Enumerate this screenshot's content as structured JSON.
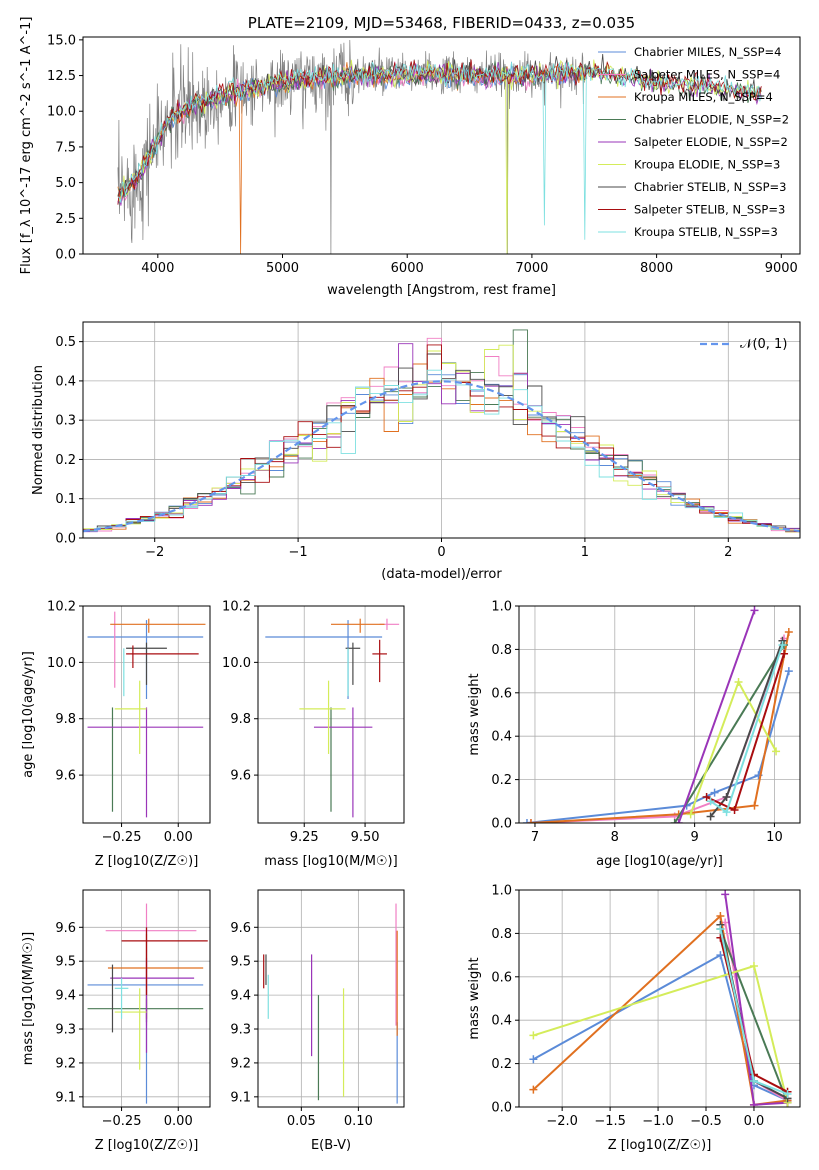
{
  "colors": {
    "chabrier_miles": "#5b8bd8",
    "salpeter_miles": "#f07fc4",
    "kroupa_miles": "#e07020",
    "chabrier_elodie": "#4a7a55",
    "salpeter_elodie": "#9a35b8",
    "kroupa_elodie": "#d4ec5a",
    "chabrier_stelib": "#4a4a4a",
    "salpeter_stelib": "#a80d10",
    "kroupa_stelib": "#7ee0e0",
    "gauss": "#6495ed",
    "spectrum": "#808080"
  },
  "chart_data": [
    {
      "id": "spectrum",
      "type": "line",
      "title": "PLATE=2109, MJD=53468, FIBERID=0433, z=0.035",
      "xlabel": "wavelength [Angstrom, rest frame]",
      "ylabel": "Flux [f_λ 10^-17 erg cm^-2 s^-1 A^-1]",
      "xlim": [
        3400,
        9150
      ],
      "ylim": [
        0,
        15.2
      ],
      "xticks": [
        "4000",
        "5000",
        "6000",
        "7000",
        "8000",
        "9000"
      ],
      "yticks": [
        "0.0",
        "2.5",
        "5.0",
        "7.5",
        "10.0",
        "12.5",
        "15.0"
      ],
      "grid": false,
      "legend_position": "upper-right",
      "legend": [
        "Chabrier MILES, N_SSP=4",
        "Salpeter MILES, N_SSP=4",
        "Kroupa MILES, N_SSP=4",
        "Chabrier ELODIE, N_SSP=2",
        "Salpeter ELODIE, N_SSP=2",
        "Kroupa ELODIE, N_SSP=3",
        "Chabrier STELIB, N_SSP=3",
        "Salpeter STELIB, N_SSP=3",
        "Kroupa STELIB, N_SSP=3"
      ],
      "continuum": {
        "x": [
          3700,
          3850,
          4000,
          4100,
          4300,
          4600,
          5000,
          5500,
          6000,
          6500,
          7000,
          7500,
          8000,
          8500,
          8800
        ],
        "y": [
          4.0,
          5.5,
          8.0,
          9.5,
          10.5,
          11.3,
          12.0,
          12.5,
          12.6,
          12.5,
          12.5,
          12.8,
          12.0,
          11.6,
          11.2
        ]
      }
    },
    {
      "id": "residuals",
      "type": "step",
      "xlabel": "(data-model)/error",
      "ylabel": "Normed distribution",
      "xlim": [
        -2.5,
        2.5
      ],
      "ylim": [
        0,
        0.55
      ],
      "xticks": [
        "−2",
        "−1",
        "0",
        "1",
        "2"
      ],
      "yticks": [
        "0.0",
        "0.1",
        "0.2",
        "0.3",
        "0.4",
        "0.5"
      ],
      "grid": true,
      "legend": [
        "𝒩(0, 1)"
      ],
      "legend_position": "upper-right",
      "bin_width": 0.1,
      "reference_curve": "gaussian mean 0 sigma 1"
    },
    {
      "id": "age-vs-Z",
      "type": "errorbar",
      "xlabel": "Z [log10(Z/Z☉)]",
      "ylabel": "age  [log10(age/yr)]",
      "xlim": [
        -0.42,
        0.14
      ],
      "ylim": [
        9.43,
        10.2
      ],
      "xticks": [
        "−0.25",
        "0.00"
      ],
      "yticks": [
        "9.6",
        "9.8",
        "10.0",
        "10.2"
      ],
      "grid": true,
      "points": [
        {
          "c": "chabrier_miles",
          "x": -0.14,
          "xe": [
            0.26,
            0.25
          ],
          "y": 10.09,
          "ye": [
            0.22,
            0.06
          ]
        },
        {
          "c": "salpeter_miles",
          "x": -0.28,
          "xe": [
            0.0,
            0.0
          ],
          "y": 10.13,
          "ye": [
            0.22,
            0.05
          ]
        },
        {
          "c": "kroupa_miles",
          "x": -0.13,
          "xe": [
            0.17,
            0.25
          ],
          "y": 10.135,
          "ye": [
            0.03,
            0.02
          ]
        },
        {
          "c": "chabrier_elodie",
          "x": -0.29,
          "xe": [
            0.0,
            0.0
          ],
          "y": 9.77,
          "ye": [
            0.3,
            0.07
          ]
        },
        {
          "c": "salpeter_elodie",
          "x": -0.14,
          "xe": [
            0.26,
            0.25
          ],
          "y": 9.77,
          "ye": [
            0.32,
            0.07
          ]
        },
        {
          "c": "kroupa_elodie",
          "x": -0.17,
          "xe": [
            0.11,
            0.03
          ],
          "y": 9.835,
          "ye": [
            0.16,
            0.1
          ]
        },
        {
          "c": "chabrier_stelib",
          "x": -0.14,
          "xe": [
            0.09,
            0.09
          ],
          "y": 10.05,
          "ye": [
            0.13,
            0.02
          ]
        },
        {
          "c": "salpeter_stelib",
          "x": -0.2,
          "xe": [
            0.03,
            0.29
          ],
          "y": 10.03,
          "ye": [
            0.05,
            0.03
          ]
        },
        {
          "c": "kroupa_stelib",
          "x": -0.24,
          "xe": [
            0.0,
            0.0
          ],
          "y": 10.02,
          "ye": [
            0.14,
            0.03
          ]
        }
      ]
    },
    {
      "id": "age-vs-mass",
      "type": "errorbar",
      "xlabel": "mass [log10(M/M☉)]",
      "ylabel": "",
      "xlim": [
        9.06,
        9.66
      ],
      "ylim": [
        9.43,
        10.2
      ],
      "xticks": [
        "9.25",
        "9.50"
      ],
      "yticks": [
        "9.6",
        "9.8",
        "10.0",
        "10.2"
      ],
      "grid": true,
      "points": [
        {
          "c": "chabrier_miles",
          "x": 9.43,
          "xe": [
            0.34,
            0.14
          ],
          "y": 10.09,
          "ye": [
            0.22,
            0.06
          ]
        },
        {
          "c": "salpeter_miles",
          "x": 9.59,
          "xe": [
            0.03,
            0.05
          ],
          "y": 10.135,
          "ye": [
            0.02,
            0.02
          ]
        },
        {
          "c": "kroupa_miles",
          "x": 9.48,
          "xe": [
            0.12,
            0.1
          ],
          "y": 10.135,
          "ye": [
            0.03,
            0.02
          ]
        },
        {
          "c": "chabrier_elodie",
          "x": 9.36,
          "xe": [
            0.0,
            0.0
          ],
          "y": 9.77,
          "ye": [
            0.3,
            0.07
          ]
        },
        {
          "c": "salpeter_elodie",
          "x": 9.45,
          "xe": [
            0.16,
            0.08
          ],
          "y": 9.77,
          "ye": [
            0.32,
            0.07
          ]
        },
        {
          "c": "kroupa_elodie",
          "x": 9.35,
          "xe": [
            0.12,
            0.07
          ],
          "y": 9.835,
          "ye": [
            0.16,
            0.1
          ]
        },
        {
          "c": "chabrier_stelib",
          "x": 9.45,
          "xe": [
            0.03,
            0.03
          ],
          "y": 10.05,
          "ye": [
            0.13,
            0.02
          ]
        },
        {
          "c": "salpeter_stelib",
          "x": 9.56,
          "xe": [
            0.03,
            0.03
          ],
          "y": 10.03,
          "ye": [
            0.1,
            0.05
          ]
        },
        {
          "c": "kroupa_stelib",
          "x": 9.43,
          "xe": [
            0.0,
            0.0
          ],
          "y": 10.02,
          "ye": [
            0.14,
            0.03
          ]
        }
      ]
    },
    {
      "id": "mass-weight-vs-age",
      "type": "line",
      "xlabel": "age  [log10(age/yr)]",
      "ylabel": "mass weight",
      "xlim": [
        6.8,
        10.32
      ],
      "ylim": [
        0,
        1.0
      ],
      "xticks": [
        "7",
        "8",
        "9",
        "10"
      ],
      "yticks": [
        "0.0",
        "0.2",
        "0.4",
        "0.6",
        "0.8",
        "1.0"
      ],
      "grid": true,
      "series": [
        {
          "c": "chabrier_miles",
          "x": [
            6.9,
            8.9,
            9.25,
            9.8,
            10.18
          ],
          "y": [
            0.0,
            0.08,
            0.14,
            0.22,
            0.7
          ]
        },
        {
          "c": "salpeter_miles",
          "x": [
            6.95,
            8.75,
            9.4,
            10.12
          ],
          "y": [
            0.0,
            0.03,
            0.12,
            0.85
          ]
        },
        {
          "c": "kroupa_miles",
          "x": [
            6.95,
            8.8,
            9.75,
            10.18
          ],
          "y": [
            0.0,
            0.04,
            0.08,
            0.88
          ]
        },
        {
          "c": "chabrier_elodie",
          "x": [
            8.75,
            10.12
          ],
          "y": [
            0.0,
            0.82
          ]
        },
        {
          "c": "salpeter_elodie",
          "x": [
            8.8,
            9.75
          ],
          "y": [
            0.0,
            0.98
          ]
        },
        {
          "c": "kroupa_elodie",
          "x": [
            8.95,
            9.55,
            10.02
          ],
          "y": [
            0.04,
            0.65,
            0.33
          ]
        },
        {
          "c": "chabrier_stelib",
          "x": [
            9.2,
            9.4,
            10.1
          ],
          "y": [
            0.03,
            0.12,
            0.84
          ]
        },
        {
          "c": "salpeter_stelib",
          "x": [
            9.15,
            9.5,
            10.12
          ],
          "y": [
            0.12,
            0.06,
            0.78
          ]
        },
        {
          "c": "kroupa_stelib",
          "x": [
            9.2,
            9.4,
            10.1
          ],
          "y": [
            0.1,
            0.05,
            0.82
          ]
        }
      ]
    },
    {
      "id": "mass-vs-Z",
      "type": "errorbar",
      "xlabel": "Z [log10(Z/Z☉)]",
      "ylabel": "mass [log10(M/M☉)]",
      "xlim": [
        -0.42,
        0.14
      ],
      "ylim": [
        9.07,
        9.71
      ],
      "xticks": [
        "−0.25",
        "0.00"
      ],
      "yticks": [
        "9.1",
        "9.2",
        "9.3",
        "9.4",
        "9.5",
        "9.6"
      ],
      "grid": true,
      "points": [
        {
          "c": "chabrier_miles",
          "x": -0.14,
          "xe": [
            0.26,
            0.25
          ],
          "y": 9.43,
          "ye": [
            0.35,
            0.17
          ]
        },
        {
          "c": "salpeter_miles",
          "x": -0.14,
          "xe": [
            0.18,
            0.22
          ],
          "y": 9.59,
          "ye": [
            0.28,
            0.08
          ]
        },
        {
          "c": "kroupa_miles",
          "x": -0.14,
          "xe": [
            0.17,
            0.25
          ],
          "y": 9.48,
          "ye": [
            0.15,
            0.1
          ]
        },
        {
          "c": "chabrier_elodie",
          "x": -0.14,
          "xe": [
            0.26,
            0.25
          ],
          "y": 9.36,
          "ye": [
            0.04,
            0.03
          ]
        },
        {
          "c": "salpeter_elodie",
          "x": -0.14,
          "xe": [
            0.16,
            0.21
          ],
          "y": 9.45,
          "ye": [
            0.22,
            0.06
          ]
        },
        {
          "c": "kroupa_elodie",
          "x": -0.17,
          "xe": [
            0.11,
            0.03
          ],
          "y": 9.35,
          "ye": [
            0.17,
            0.07
          ]
        },
        {
          "c": "chabrier_stelib",
          "x": -0.29,
          "xe": [
            0.0,
            0.0
          ],
          "y": 9.46,
          "ye": [
            0.17,
            0.03
          ]
        },
        {
          "c": "salpeter_stelib",
          "x": -0.14,
          "xe": [
            0.11,
            0.27
          ],
          "y": 9.56,
          "ye": [
            0.16,
            0.04
          ]
        },
        {
          "c": "kroupa_stelib",
          "x": -0.25,
          "xe": [
            0.03,
            0.03
          ],
          "y": 9.42,
          "ye": [
            0.09,
            0.03
          ]
        }
      ]
    },
    {
      "id": "mass-vs-ebv",
      "type": "errorbar",
      "xlabel": "E(B-V)",
      "ylabel": "",
      "xlim": [
        0.012,
        0.14
      ],
      "ylim": [
        9.07,
        9.71
      ],
      "xticks": [
        "0.05",
        "0.10"
      ],
      "yticks": [
        "9.1",
        "9.2",
        "9.3",
        "9.4",
        "9.5",
        "9.6"
      ],
      "grid": true,
      "points": [
        {
          "c": "chabrier_miles",
          "x": 0.134,
          "xe": [
            0.0,
            0.0
          ],
          "y": 9.29,
          "ye": [
            0.21,
            0.03
          ]
        },
        {
          "c": "salpeter_miles",
          "x": 0.133,
          "xe": [
            0.0,
            0.0
          ],
          "y": 9.59,
          "ye": [
            0.28,
            0.08
          ]
        },
        {
          "c": "kroupa_miles",
          "x": 0.134,
          "xe": [
            0.0,
            0.0
          ],
          "y": 9.43,
          "ye": [
            0.15,
            0.16
          ]
        },
        {
          "c": "chabrier_elodie",
          "x": 0.065,
          "xe": [
            0.0,
            0.0
          ],
          "y": 9.27,
          "ye": [
            0.18,
            0.13
          ]
        },
        {
          "c": "salpeter_elodie",
          "x": 0.059,
          "xe": [
            0.0,
            0.0
          ],
          "y": 9.37,
          "ye": [
            0.15,
            0.15
          ]
        },
        {
          "c": "kroupa_elodie",
          "x": 0.087,
          "xe": [
            0.0,
            0.0
          ],
          "y": 9.32,
          "ye": [
            0.22,
            0.1
          ]
        },
        {
          "c": "chabrier_stelib",
          "x": 0.019,
          "xe": [
            0.0,
            0.0
          ],
          "y": 9.49,
          "ye": [
            0.06,
            0.03
          ]
        },
        {
          "c": "salpeter_stelib",
          "x": 0.017,
          "xe": [
            0.0,
            0.0
          ],
          "y": 9.47,
          "ye": [
            0.05,
            0.05
          ]
        },
        {
          "c": "kroupa_stelib",
          "x": 0.021,
          "xe": [
            0.0,
            0.0
          ],
          "y": 9.42,
          "ye": [
            0.09,
            0.04
          ]
        }
      ]
    },
    {
      "id": "mass-weight-vs-Z",
      "type": "line",
      "xlabel": "Z [log10(Z/Z☉)]",
      "ylabel": "mass weight",
      "xlim": [
        -2.45,
        0.48
      ],
      "ylim": [
        0,
        1.0
      ],
      "xticks": [
        "−2.0",
        "−1.5",
        "−1.0",
        "−0.5",
        "0.0"
      ],
      "yticks": [
        "0.0",
        "0.2",
        "0.4",
        "0.6",
        "0.8",
        "1.0"
      ],
      "grid": true,
      "series": [
        {
          "c": "chabrier_miles",
          "x": [
            -2.3,
            -0.35,
            0.0,
            0.35
          ],
          "y": [
            0.22,
            0.7,
            0.1,
            0.03
          ]
        },
        {
          "c": "salpeter_miles",
          "x": [
            -0.3,
            0.0,
            0.35
          ],
          "y": [
            0.85,
            0.12,
            0.03
          ]
        },
        {
          "c": "kroupa_miles",
          "x": [
            -2.3,
            -0.35,
            0.0,
            0.35
          ],
          "y": [
            0.08,
            0.88,
            0.01,
            0.03
          ]
        },
        {
          "c": "chabrier_elodie",
          "x": [
            -0.35,
            0.35
          ],
          "y": [
            0.82,
            0.02
          ]
        },
        {
          "c": "salpeter_elodie",
          "x": [
            -0.3,
            0.0,
            0.35
          ],
          "y": [
            0.98,
            0.01,
            0.02
          ]
        },
        {
          "c": "kroupa_elodie",
          "x": [
            -2.3,
            0.0,
            0.35
          ],
          "y": [
            0.33,
            0.65,
            0.02
          ]
        },
        {
          "c": "chabrier_stelib",
          "x": [
            -0.35,
            0.0,
            0.35
          ],
          "y": [
            0.84,
            0.12,
            0.04
          ]
        },
        {
          "c": "salpeter_stelib",
          "x": [
            -0.35,
            0.0,
            0.35
          ],
          "y": [
            0.78,
            0.15,
            0.07
          ]
        },
        {
          "c": "kroupa_stelib",
          "x": [
            -0.35,
            0.0,
            0.35
          ],
          "y": [
            0.82,
            0.12,
            0.06
          ]
        }
      ]
    }
  ]
}
